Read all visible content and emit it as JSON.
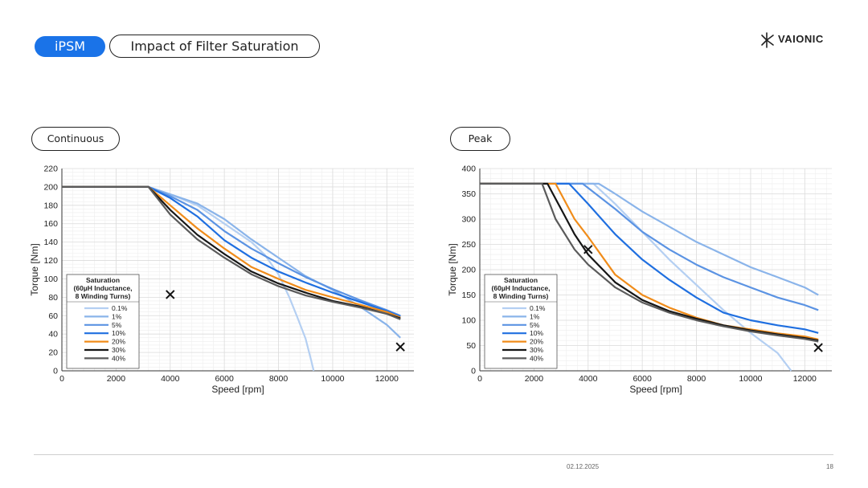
{
  "header": {
    "tag": "iPSM",
    "title": "Impact of Filter Saturation",
    "logo_text": "VAIONIC"
  },
  "footer": {
    "date": "02.12.2025",
    "page": "18"
  },
  "legend_colors": {
    "0.1%": "#b4cff2",
    "1%": "#8ab4ea",
    "5%": "#5b93e3",
    "10%": "#1f6fe0",
    "20%": "#f08c1a",
    "30%": "#151515",
    "40%": "#5a5a5a"
  },
  "chart_data": [
    {
      "type": "line",
      "section_label": "Continuous",
      "xlabel": "Speed [rpm]",
      "ylabel": "Torque [Nm]",
      "xlim": [
        0,
        13000
      ],
      "ylim": [
        0,
        220
      ],
      "xticks": [
        0,
        2000,
        4000,
        6000,
        8000,
        10000,
        12000
      ],
      "yticks": [
        0,
        20,
        40,
        60,
        80,
        100,
        120,
        140,
        160,
        180,
        200,
        220
      ],
      "legend_title": [
        "Saturation",
        "(60µH Inductance,",
        "8 Winding Turns)"
      ],
      "markers": [
        {
          "x": 4000,
          "y": 83
        },
        {
          "x": 12500,
          "y": 26
        }
      ],
      "series": [
        {
          "name": "0.1%",
          "x": [
            0,
            3200,
            4000,
            5000,
            6000,
            7000,
            7500,
            8000,
            8400,
            8700,
            9000,
            9200,
            9300
          ],
          "y": [
            200,
            200,
            192,
            180,
            160,
            140,
            126,
            105,
            80,
            58,
            35,
            12,
            0
          ]
        },
        {
          "name": "1%",
          "x": [
            0,
            3200,
            4000,
            5000,
            6000,
            7000,
            8000,
            9000,
            10000,
            11000,
            12000,
            12500
          ],
          "y": [
            200,
            200,
            192,
            182,
            165,
            143,
            123,
            103,
            88,
            70,
            50,
            36
          ]
        },
        {
          "name": "5%",
          "x": [
            0,
            3200,
            4000,
            5000,
            6000,
            7000,
            8000,
            9000,
            10000,
            11000,
            12000,
            12500
          ],
          "y": [
            200,
            200,
            190,
            175,
            152,
            133,
            117,
            102,
            89,
            77,
            66,
            60
          ]
        },
        {
          "name": "10%",
          "x": [
            0,
            3200,
            4000,
            5000,
            6000,
            7000,
            8000,
            9000,
            10000,
            11000,
            12000,
            12500
          ],
          "y": [
            200,
            200,
            188,
            168,
            142,
            123,
            108,
            96,
            85,
            75,
            65,
            59
          ]
        },
        {
          "name": "20%",
          "x": [
            0,
            3200,
            4000,
            5000,
            6000,
            7000,
            8000,
            9000,
            10000,
            11000,
            12000,
            12500
          ],
          "y": [
            200,
            200,
            180,
            155,
            133,
            113,
            100,
            88,
            80,
            72,
            64,
            58
          ]
        },
        {
          "name": "30%",
          "x": [
            0,
            3200,
            4000,
            5000,
            6000,
            7000,
            8000,
            9000,
            10000,
            11000,
            12000,
            12500
          ],
          "y": [
            200,
            200,
            175,
            148,
            127,
            108,
            95,
            85,
            76,
            70,
            62,
            57
          ]
        },
        {
          "name": "40%",
          "x": [
            0,
            3200,
            4000,
            5000,
            6000,
            7000,
            8000,
            9000,
            10000,
            11000,
            12000,
            12500
          ],
          "y": [
            200,
            200,
            170,
            143,
            123,
            105,
            92,
            82,
            75,
            69,
            62,
            56
          ]
        }
      ]
    },
    {
      "type": "line",
      "section_label": "Peak",
      "xlabel": "Speed [rpm]",
      "ylabel": "Torque [Nm]",
      "xlim": [
        0,
        13000
      ],
      "ylim": [
        0,
        400
      ],
      "xticks": [
        0,
        2000,
        4000,
        6000,
        8000,
        10000,
        12000
      ],
      "yticks": [
        0,
        50,
        100,
        150,
        200,
        250,
        300,
        350,
        400
      ],
      "legend_title": [
        "Saturation",
        "(60µH Inductance,",
        "8 Winding Turns)"
      ],
      "markers": [
        {
          "x": 4000,
          "y": 240
        },
        {
          "x": 12500,
          "y": 46
        }
      ],
      "series": [
        {
          "name": "0.1%",
          "x": [
            0,
            4200,
            5000,
            6000,
            7000,
            8000,
            9000,
            10000,
            11000,
            11500
          ],
          "y": [
            370,
            370,
            330,
            275,
            220,
            170,
            120,
            75,
            35,
            0
          ]
        },
        {
          "name": "1%",
          "x": [
            0,
            4400,
            5000,
            6000,
            7000,
            8000,
            9000,
            10000,
            11000,
            12000,
            12500
          ],
          "y": [
            370,
            370,
            350,
            315,
            285,
            255,
            230,
            205,
            185,
            165,
            150
          ]
        },
        {
          "name": "5%",
          "x": [
            0,
            3800,
            5000,
            6000,
            7000,
            8000,
            9000,
            10000,
            11000,
            12000,
            12500
          ],
          "y": [
            370,
            370,
            320,
            275,
            240,
            210,
            185,
            165,
            145,
            130,
            120
          ]
        },
        {
          "name": "10%",
          "x": [
            0,
            3300,
            4000,
            5000,
            6000,
            7000,
            8000,
            9000,
            10000,
            11000,
            12000,
            12500
          ],
          "y": [
            370,
            370,
            330,
            270,
            220,
            180,
            145,
            115,
            100,
            90,
            82,
            75
          ]
        },
        {
          "name": "20%",
          "x": [
            0,
            2800,
            3500,
            4000,
            5000,
            6000,
            7000,
            8000,
            9000,
            10000,
            11000,
            12000,
            12500
          ],
          "y": [
            370,
            370,
            300,
            265,
            190,
            150,
            125,
            105,
            90,
            82,
            74,
            68,
            62
          ]
        },
        {
          "name": "30%",
          "x": [
            0,
            2500,
            3000,
            3500,
            4000,
            5000,
            6000,
            7000,
            8000,
            9000,
            10000,
            11000,
            12000,
            12500
          ],
          "y": [
            370,
            370,
            320,
            270,
            230,
            175,
            140,
            118,
            103,
            90,
            80,
            72,
            65,
            60
          ]
        },
        {
          "name": "40%",
          "x": [
            0,
            2300,
            2800,
            3500,
            4000,
            5000,
            6000,
            7000,
            8000,
            9000,
            10000,
            11000,
            12000,
            12500
          ],
          "y": [
            370,
            370,
            300,
            240,
            210,
            165,
            135,
            115,
            100,
            88,
            78,
            70,
            63,
            58
          ]
        }
      ]
    }
  ]
}
